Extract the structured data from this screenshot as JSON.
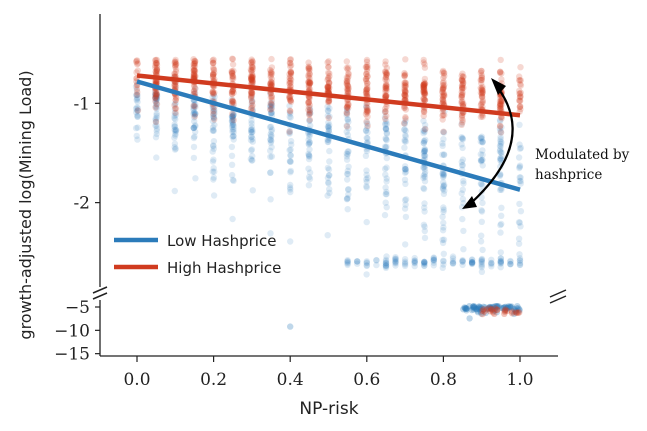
{
  "chart_data": {
    "type": "scatter",
    "xlabel": "NP-risk",
    "ylabel": "growth-adjusted log(Mining Load)",
    "xlim": [
      -0.1,
      1.1
    ],
    "upper_panel": {
      "ylim": [
        -2.85,
        -0.1
      ],
      "yticks": [
        -1,
        -2
      ],
      "ytick_labels": [
        "-1",
        "-2"
      ]
    },
    "lower_panel": {
      "ylim": [
        -15.5,
        -3.5
      ],
      "yticks": [
        -5,
        -10,
        -15
      ],
      "ytick_labels": [
        "−5",
        "−10",
        "−15"
      ]
    },
    "xticks": [
      0.0,
      0.2,
      0.4,
      0.6,
      0.8,
      1.0
    ],
    "xtick_labels": [
      "0.0",
      "0.2",
      "0.4",
      "0.6",
      "0.8",
      "1.0"
    ],
    "broken_y_axis": true,
    "grid": false,
    "legend_position": "bottom-left",
    "series": [
      {
        "name": "Low Hashprice",
        "color": "#2b7bba",
        "fit_line": {
          "x": [
            0.0,
            1.0
          ],
          "y": [
            -0.78,
            -1.87
          ]
        },
        "scatter_alpha": 0.15
      },
      {
        "name": "High Hashprice",
        "color": "#d03b1f",
        "fit_line": {
          "x": [
            0.0,
            1.0
          ],
          "y": [
            -0.72,
            -1.12
          ]
        },
        "scatter_alpha": 0.2
      }
    ],
    "annotation": {
      "text_line1": "Modulated by",
      "text_line2": "hashprice",
      "arrow": "double-headed curved arrow between the two fit lines near x=0.9"
    }
  }
}
